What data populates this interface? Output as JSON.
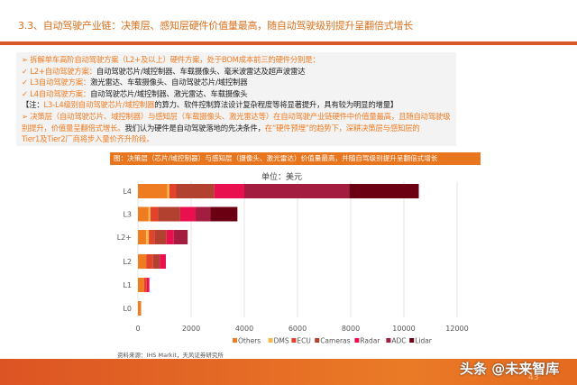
{
  "title": "3.3、自动驾驶产业链：决策层、感知层硬件价值量最高，随自动驾驶级别提升呈翻倍式增长",
  "bullets": [
    {
      "parts": [
        {
          "t": "➢ 拆解单车高阶自动驾驶方案（L2+及以上）硬件方案，处于BOM成本前三的硬件分别是：",
          "c": "o"
        }
      ]
    },
    {
      "parts": [
        {
          "t": "✓ L2+自动驾驶方案：",
          "c": "o"
        },
        {
          "t": "自动驾驶芯片/域控制器、车载摄像头、毫米波雷达及超声波雷达",
          "c": "k"
        }
      ]
    },
    {
      "parts": [
        {
          "t": "✓ L3自动驾驶方案：",
          "c": "o"
        },
        {
          "t": "激光雷达、车载摄像头、自动驾驶芯片/域控制器",
          "c": "k"
        }
      ]
    },
    {
      "parts": [
        {
          "t": "✓ L4自动驾驶方案：",
          "c": "o"
        },
        {
          "t": "自动驾驶芯片/域控制器、激光雷达、车载摄像头",
          "c": "k"
        }
      ]
    },
    {
      "parts": [
        {
          "t": "【注：",
          "c": "k"
        },
        {
          "t": "L3-L4级别自动驾驶芯片/域控制器",
          "c": "o"
        },
        {
          "t": "的算力、软件控制算法设计复杂程度等将显著提升，具有较为明显的增量】",
          "c": "k"
        }
      ]
    },
    {
      "parts": [
        {
          "t": "➢ 决策层（自动驾驶芯片、域控制器）与感知层（车载摄像头、激光雷达等）在自动驾驶产业链硬件中价值量最高，且随自动驾驶级",
          "c": "o"
        }
      ]
    },
    {
      "parts": [
        {
          "t": "别提升，价值量呈翻倍式增长。",
          "c": "o"
        },
        {
          "t": "我们认为硬件是自动驾驶落地的先决条件，",
          "c": "k"
        },
        {
          "t": "在“硬件预埋”的趋势下，深耕决策层与感知层的",
          "c": "o"
        }
      ]
    },
    {
      "parts": [
        {
          "t": "Tier1及Tier2厂商将步入量价齐升阶段。",
          "c": "o"
        }
      ]
    }
  ],
  "chart_caption": "图：决策层（芯片/域控制器）与感知层（摄像头、激光雷达）价值量最高，并随自驾级别提升呈翻倍式增长",
  "source": "资料来源：IHS Markit，天风证券研究所",
  "watermark": "头条 @未来智库",
  "page_number": "43",
  "chart_data": {
    "type": "bar",
    "orientation": "horizontal",
    "stacked": true,
    "title": "单位：美元",
    "categories": [
      "L4",
      "L3",
      "L2+",
      "L2",
      "L1",
      "L0"
    ],
    "xlim": [
      0,
      12000
    ],
    "xticks": [
      0,
      2000,
      4000,
      6000,
      8000,
      10000,
      12000
    ],
    "grid": true,
    "legend_position": "bottom",
    "series": [
      {
        "name": "Others",
        "color": "#f07c22",
        "values": [
          1100,
          390,
          310,
          310,
          230,
          120
        ]
      },
      {
        "name": "DMS",
        "color": "#f7b84a",
        "values": [
          80,
          80,
          100,
          0,
          0,
          0
        ]
      },
      {
        "name": "ECU",
        "color": "#e2432a",
        "values": [
          260,
          290,
          210,
          260,
          100,
          0
        ]
      },
      {
        "name": "Cameras",
        "color": "#b3412f",
        "values": [
          1430,
          830,
          455,
          250,
          0,
          0
        ]
      },
      {
        "name": "Radar",
        "color": "#e8104f",
        "values": [
          1130,
          580,
          275,
          230,
          100,
          0
        ]
      },
      {
        "name": "ADC",
        "color": "#a31d40",
        "values": [
          3940,
          560,
          520,
          0,
          0,
          0
        ]
      },
      {
        "name": "Lidar",
        "color": "#6b0012",
        "values": [
          2620,
          1010,
          0,
          0,
          0,
          0
        ]
      }
    ]
  }
}
